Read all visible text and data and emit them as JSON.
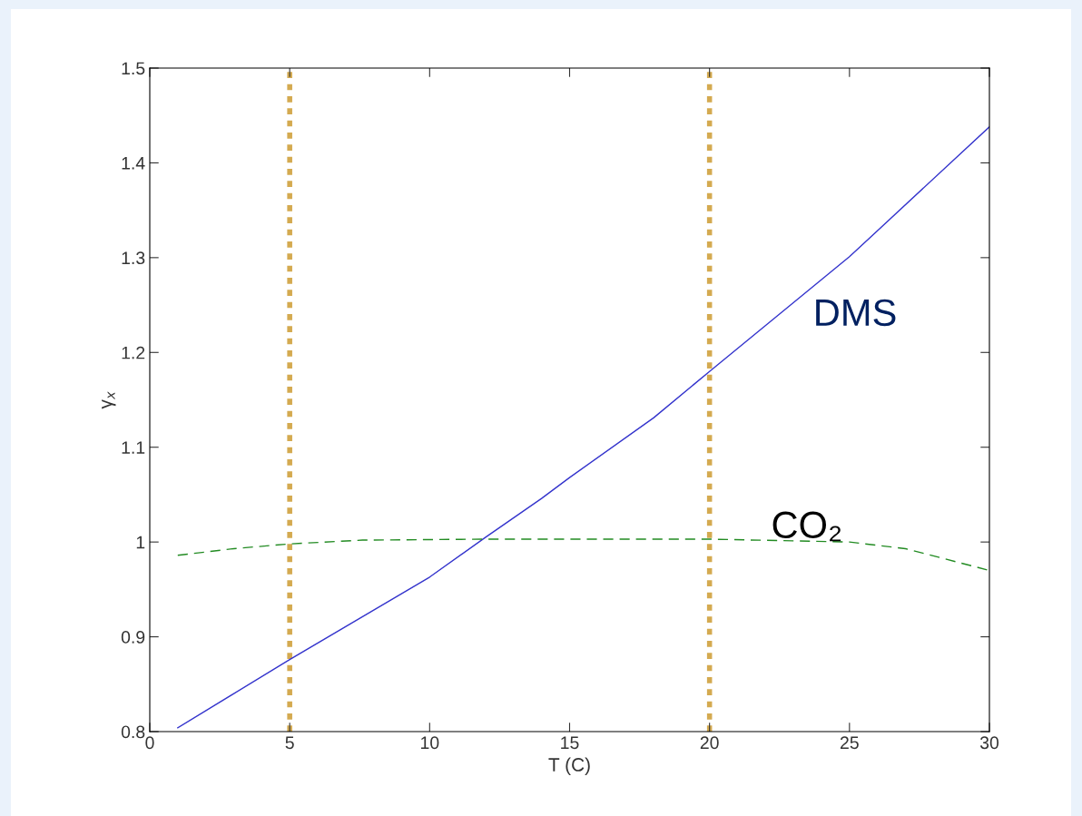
{
  "chart_data": {
    "type": "line",
    "xlabel": "T (C)",
    "ylabel": "γ$_{x}$",
    "xlim": [
      0,
      30
    ],
    "xticks": [
      0,
      5,
      10,
      15,
      20,
      25,
      30
    ],
    "ylim": [
      0.8,
      1.5
    ],
    "yticks": [
      0.8,
      0.9,
      1,
      1.1,
      1.2,
      1.3,
      1.4,
      1.5
    ],
    "grid": false,
    "legend": false,
    "marker": "none",
    "series": [
      {
        "name": "DMS",
        "color": "#3333cc",
        "line_style": "solid",
        "x": [
          1,
          5,
          10,
          12,
          14,
          15,
          18,
          20,
          25,
          30
        ],
        "values": [
          0.804,
          0.876,
          0.963,
          1.005,
          1.046,
          1.068,
          1.131,
          1.18,
          1.301,
          1.438
        ]
      },
      {
        "name": "CO₂",
        "color": "#228b22",
        "line_style": "dashed",
        "x": [
          1,
          3,
          5,
          7.6,
          12,
          20,
          25,
          27,
          30
        ],
        "values": [
          0.986,
          0.993,
          0.998,
          1.002,
          1.003,
          1.003,
          1.0,
          0.993,
          0.97
        ]
      }
    ],
    "ref_lines": [
      {
        "axis": "x",
        "value": 5,
        "color": "#d4aa50",
        "line_style": "dotted"
      },
      {
        "axis": "x",
        "value": 20,
        "color": "#d4aa50",
        "line_style": "dotted"
      }
    ]
  }
}
